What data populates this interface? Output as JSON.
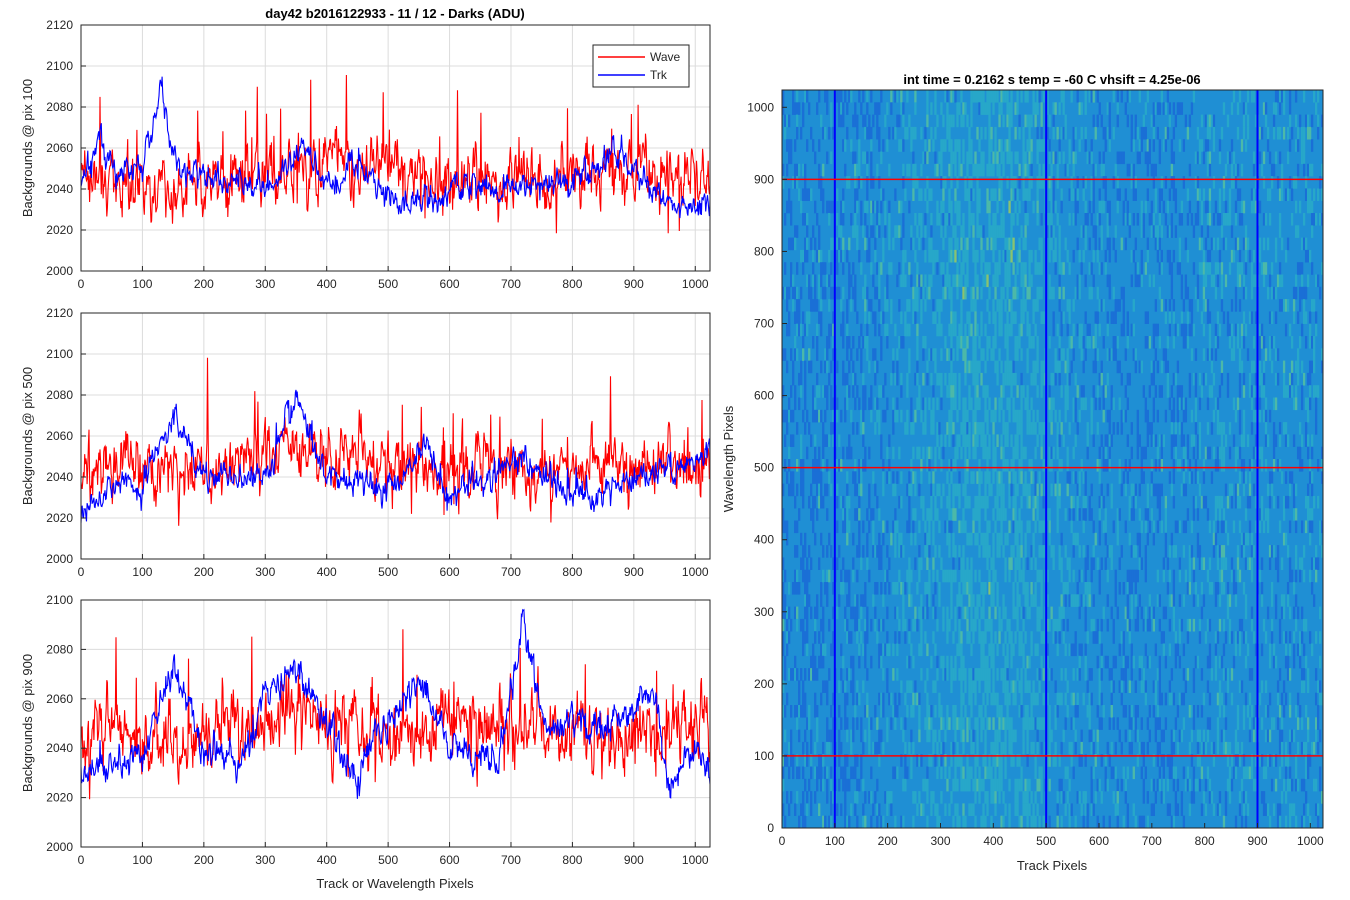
{
  "figure": {
    "title_left": "day42 b2016122933 - 11 / 12 - Darks (ADU)",
    "xlabel_left": "Track or Wavelength Pixels"
  },
  "chart_data": [
    {
      "type": "line",
      "title": "day42 b2016122933 - 11 / 12 - Darks (ADU)",
      "xlabel": "",
      "ylabel": "Backgrounds @ pix 100",
      "xlim": [
        0,
        1024
      ],
      "ylim": [
        2000,
        2120
      ],
      "xticks": [
        0,
        100,
        200,
        300,
        400,
        500,
        600,
        700,
        800,
        900,
        1000
      ],
      "yticks": [
        2000,
        2020,
        2040,
        2060,
        2080,
        2100,
        2120
      ],
      "grid": true,
      "legend": {
        "position": "top-right",
        "entries": [
          "Wave",
          "Trk"
        ]
      },
      "series": [
        {
          "name": "Wave",
          "color": "#ff0000",
          "mean": 2043,
          "noise": 11,
          "spike": 30,
          "seed": 11,
          "anchors": [
            [
              0,
              2045
            ],
            [
              150,
              2040
            ],
            [
              300,
              2048
            ],
            [
              420,
              2052
            ],
            [
              550,
              2045
            ],
            [
              700,
              2042
            ],
            [
              850,
              2048
            ],
            [
              1024,
              2043
            ]
          ]
        },
        {
          "name": "Trk",
          "color": "#0000ff",
          "mean": 2040,
          "noise": 5,
          "spike": 8,
          "seed": 12,
          "anchors": [
            [
              0,
              2045
            ],
            [
              30,
              2065
            ],
            [
              60,
              2048
            ],
            [
              100,
              2052
            ],
            [
              130,
              2088
            ],
            [
              160,
              2048
            ],
            [
              250,
              2045
            ],
            [
              300,
              2038
            ],
            [
              360,
              2060
            ],
            [
              400,
              2042
            ],
            [
              450,
              2050
            ],
            [
              520,
              2032
            ],
            [
              600,
              2040
            ],
            [
              700,
              2042
            ],
            [
              780,
              2040
            ],
            [
              830,
              2050
            ],
            [
              870,
              2060
            ],
            [
              950,
              2036
            ],
            [
              1000,
              2030
            ],
            [
              1024,
              2030
            ]
          ]
        }
      ]
    },
    {
      "type": "line",
      "xlabel": "",
      "ylabel": "Backgrounds @ pix 500",
      "xlim": [
        0,
        1024
      ],
      "ylim": [
        2000,
        2120
      ],
      "xticks": [
        0,
        100,
        200,
        300,
        400,
        500,
        600,
        700,
        800,
        900,
        1000
      ],
      "yticks": [
        2000,
        2020,
        2040,
        2060,
        2080,
        2100,
        2120
      ],
      "grid": true,
      "series": [
        {
          "name": "Wave",
          "color": "#ff0000",
          "mean": 2045,
          "noise": 11,
          "spike": 28,
          "seed": 21,
          "anchors": [
            [
              0,
              2045
            ],
            [
              150,
              2045
            ],
            [
              300,
              2050
            ],
            [
              400,
              2052
            ],
            [
              500,
              2045
            ],
            [
              700,
              2044
            ],
            [
              900,
              2044
            ],
            [
              1024,
              2045
            ]
          ]
        },
        {
          "name": "Trk",
          "color": "#0000ff",
          "mean": 2035,
          "noise": 5,
          "spike": 8,
          "seed": 22,
          "anchors": [
            [
              0,
              2022
            ],
            [
              60,
              2038
            ],
            [
              100,
              2035
            ],
            [
              150,
              2070
            ],
            [
              200,
              2040
            ],
            [
              300,
              2040
            ],
            [
              350,
              2078
            ],
            [
              400,
              2040
            ],
            [
              500,
              2032
            ],
            [
              560,
              2055
            ],
            [
              600,
              2030
            ],
            [
              720,
              2050
            ],
            [
              800,
              2030
            ],
            [
              900,
              2040
            ],
            [
              1000,
              2046
            ],
            [
              1024,
              2052
            ]
          ]
        }
      ]
    },
    {
      "type": "line",
      "xlabel": "Track or Wavelength Pixels",
      "ylabel": "Backgrounds @ pix 900",
      "xlim": [
        0,
        1024
      ],
      "ylim": [
        2000,
        2100
      ],
      "xticks": [
        0,
        100,
        200,
        300,
        400,
        500,
        600,
        700,
        800,
        900,
        1000
      ],
      "yticks": [
        2000,
        2020,
        2040,
        2060,
        2080,
        2100
      ],
      "grid": true,
      "series": [
        {
          "name": "Wave",
          "color": "#ff0000",
          "mean": 2045,
          "noise": 11,
          "spike": 26,
          "seed": 31,
          "anchors": [
            [
              0,
              2048
            ],
            [
              150,
              2042
            ],
            [
              350,
              2055
            ],
            [
              500,
              2045
            ],
            [
              700,
              2050
            ],
            [
              900,
              2042
            ],
            [
              1024,
              2048
            ]
          ]
        },
        {
          "name": "Trk",
          "color": "#0000ff",
          "mean": 2040,
          "noise": 5,
          "spike": 7,
          "seed": 32,
          "anchors": [
            [
              0,
              2030
            ],
            [
              50,
              2035
            ],
            [
              100,
              2035
            ],
            [
              150,
              2072
            ],
            [
              200,
              2040
            ],
            [
              260,
              2035
            ],
            [
              300,
              2062
            ],
            [
              350,
              2072
            ],
            [
              400,
              2050
            ],
            [
              450,
              2030
            ],
            [
              480,
              2045
            ],
            [
              550,
              2068
            ],
            [
              600,
              2040
            ],
            [
              680,
              2035
            ],
            [
              720,
              2090
            ],
            [
              760,
              2045
            ],
            [
              800,
              2050
            ],
            [
              880,
              2050
            ],
            [
              930,
              2065
            ],
            [
              960,
              2025
            ],
            [
              1000,
              2040
            ],
            [
              1024,
              2030
            ]
          ]
        }
      ]
    },
    {
      "type": "heatmap",
      "title": "int time = 0.2162 s    temp = -60 C    vhsift = 4.25e-06",
      "xlabel": "Track Pixels",
      "ylabel": "Wavelength Pixels",
      "xlim": [
        0,
        1024
      ],
      "ylim": [
        0,
        1024
      ],
      "xticks": [
        0,
        100,
        200,
        300,
        400,
        500,
        600,
        700,
        800,
        900,
        1000
      ],
      "yticks": [
        0,
        100,
        200,
        300,
        400,
        500,
        600,
        700,
        800,
        900,
        1000
      ],
      "colormap": [
        "#1a6fd6",
        "#1f8fd4",
        "#27a7c9",
        "#4cb9a8",
        "#8ac36f"
      ],
      "vertical_lines": {
        "values": [
          100,
          500,
          900
        ],
        "color": "#0000ff"
      },
      "horizontal_lines": {
        "values": [
          100,
          500,
          900
        ],
        "color": "#ff0000"
      }
    }
  ]
}
